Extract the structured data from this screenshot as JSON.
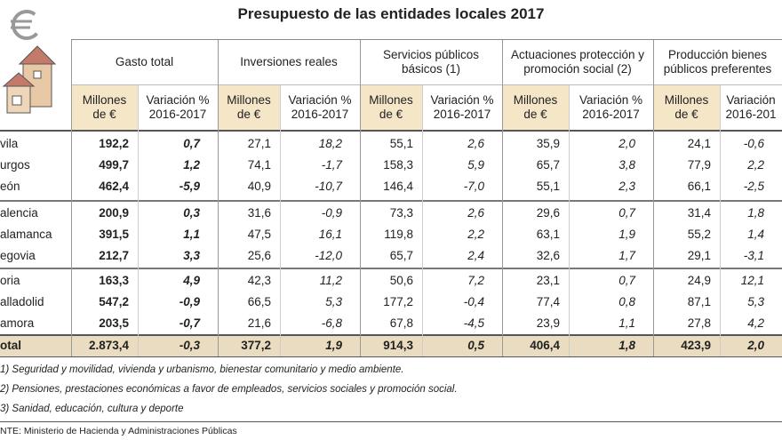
{
  "title": "Presupuesto de las entidades locales 2017",
  "groups": [
    {
      "label": "Gasto total",
      "sub": [
        "Millones de €",
        "Variación % 2016-2017"
      ]
    },
    {
      "label": "Inversiones reales",
      "sub": [
        "Millones de €",
        "Variación % 2016-2017"
      ]
    },
    {
      "label": "Servicios públicos básicos (1)",
      "sub": [
        "Millones de €",
        "Variación % 2016-2017"
      ]
    },
    {
      "label": "Actuaciones protección y promoción social (2)",
      "sub": [
        "Millones de €",
        "Variación % 2016-2017"
      ]
    },
    {
      "label": "Producción bienes públicos preferentes",
      "sub": [
        "Millones de €",
        "Variación 2016-201"
      ]
    }
  ],
  "rows": [
    [
      "vila",
      "192,2",
      "0,7",
      "27,1",
      "18,2",
      "55,1",
      "2,6",
      "35,9",
      "2,0",
      "24,1",
      "-0,6"
    ],
    [
      "urgos",
      "499,7",
      "1,2",
      "74,1",
      "-1,7",
      "158,3",
      "5,9",
      "65,7",
      "3,8",
      "77,9",
      "2,2"
    ],
    [
      "eón",
      "462,4",
      "-5,9",
      "40,9",
      "-10,7",
      "146,4",
      "-7,0",
      "55,1",
      "2,3",
      "66,1",
      "-2,5"
    ],
    [
      "alencia",
      "200,9",
      "0,3",
      "31,6",
      "-0,9",
      "73,3",
      "2,6",
      "29,6",
      "0,7",
      "31,4",
      "1,8"
    ],
    [
      "alamanca",
      "391,5",
      "1,1",
      "47,5",
      "16,1",
      "119,8",
      "2,2",
      "63,1",
      "1,9",
      "55,2",
      "1,4"
    ],
    [
      "egovia",
      "212,7",
      "3,3",
      "25,6",
      "-12,0",
      "65,7",
      "2,4",
      "32,6",
      "1,7",
      "29,1",
      "-3,1"
    ],
    [
      "oria",
      "163,3",
      "4,9",
      "42,3",
      "11,2",
      "50,6",
      "7,2",
      "23,1",
      "0,7",
      "24,9",
      "12,1"
    ],
    [
      "alladolid",
      "547,2",
      "-0,9",
      "66,5",
      "5,3",
      "177,2",
      "-0,4",
      "77,4",
      "0,8",
      "87,1",
      "5,3"
    ],
    [
      "amora",
      "203,5",
      "-0,7",
      "21,6",
      "-6,8",
      "67,8",
      "-4,5",
      "23,9",
      "1,1",
      "27,8",
      "4,2"
    ]
  ],
  "total": [
    "otal",
    "2.873,4",
    "-0,3",
    "377,2",
    "1,9",
    "914,3",
    "0,5",
    "406,4",
    "1,8",
    "423,9",
    "2,0"
  ],
  "footnotes": [
    "1) Seguridad y movilidad, vivienda y urbanismo, bienestar comunitario y medio ambiente.",
    "2) Pensiones, prestaciones económicas a favor de empleados, servicios sociales y promoción social.",
    "3) Sanidad, educación, cultura y deporte"
  ],
  "source": "NTE: Ministerio de Hacienda y Administraciones Públicas"
}
